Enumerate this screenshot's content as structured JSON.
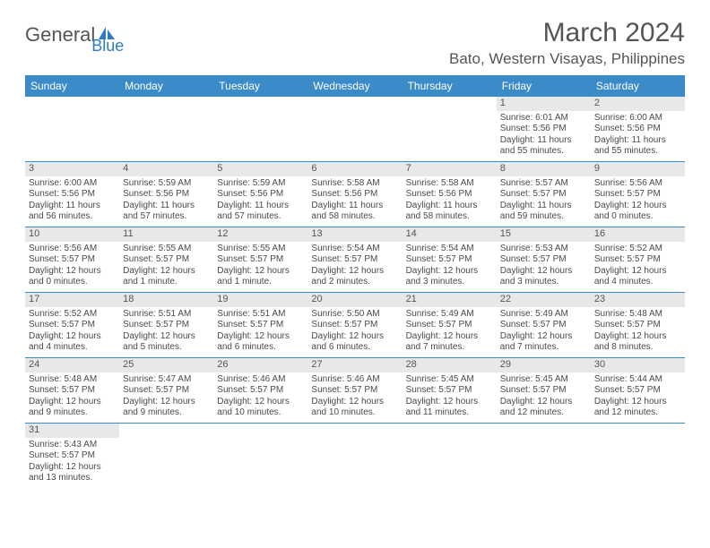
{
  "logo": {
    "part1": "General",
    "part2": "Blue"
  },
  "title": "March 2024",
  "location": "Bato, Western Visayas, Philippines",
  "colors": {
    "header_bg": "#3b8bc9",
    "header_text": "#ffffff",
    "daynum_bg": "#e8e8e8",
    "text": "#555555",
    "border": "#3b8bc9",
    "logo_blue": "#2d7cc1"
  },
  "day_headers": [
    "Sunday",
    "Monday",
    "Tuesday",
    "Wednesday",
    "Thursday",
    "Friday",
    "Saturday"
  ],
  "weeks": [
    [
      null,
      null,
      null,
      null,
      null,
      {
        "n": "1",
        "sr": "Sunrise: 6:01 AM",
        "ss": "Sunset: 5:56 PM",
        "d1": "Daylight: 11 hours",
        "d2": "and 55 minutes."
      },
      {
        "n": "2",
        "sr": "Sunrise: 6:00 AM",
        "ss": "Sunset: 5:56 PM",
        "d1": "Daylight: 11 hours",
        "d2": "and 55 minutes."
      }
    ],
    [
      {
        "n": "3",
        "sr": "Sunrise: 6:00 AM",
        "ss": "Sunset: 5:56 PM",
        "d1": "Daylight: 11 hours",
        "d2": "and 56 minutes."
      },
      {
        "n": "4",
        "sr": "Sunrise: 5:59 AM",
        "ss": "Sunset: 5:56 PM",
        "d1": "Daylight: 11 hours",
        "d2": "and 57 minutes."
      },
      {
        "n": "5",
        "sr": "Sunrise: 5:59 AM",
        "ss": "Sunset: 5:56 PM",
        "d1": "Daylight: 11 hours",
        "d2": "and 57 minutes."
      },
      {
        "n": "6",
        "sr": "Sunrise: 5:58 AM",
        "ss": "Sunset: 5:56 PM",
        "d1": "Daylight: 11 hours",
        "d2": "and 58 minutes."
      },
      {
        "n": "7",
        "sr": "Sunrise: 5:58 AM",
        "ss": "Sunset: 5:56 PM",
        "d1": "Daylight: 11 hours",
        "d2": "and 58 minutes."
      },
      {
        "n": "8",
        "sr": "Sunrise: 5:57 AM",
        "ss": "Sunset: 5:57 PM",
        "d1": "Daylight: 11 hours",
        "d2": "and 59 minutes."
      },
      {
        "n": "9",
        "sr": "Sunrise: 5:56 AM",
        "ss": "Sunset: 5:57 PM",
        "d1": "Daylight: 12 hours",
        "d2": "and 0 minutes."
      }
    ],
    [
      {
        "n": "10",
        "sr": "Sunrise: 5:56 AM",
        "ss": "Sunset: 5:57 PM",
        "d1": "Daylight: 12 hours",
        "d2": "and 0 minutes."
      },
      {
        "n": "11",
        "sr": "Sunrise: 5:55 AM",
        "ss": "Sunset: 5:57 PM",
        "d1": "Daylight: 12 hours",
        "d2": "and 1 minute."
      },
      {
        "n": "12",
        "sr": "Sunrise: 5:55 AM",
        "ss": "Sunset: 5:57 PM",
        "d1": "Daylight: 12 hours",
        "d2": "and 1 minute."
      },
      {
        "n": "13",
        "sr": "Sunrise: 5:54 AM",
        "ss": "Sunset: 5:57 PM",
        "d1": "Daylight: 12 hours",
        "d2": "and 2 minutes."
      },
      {
        "n": "14",
        "sr": "Sunrise: 5:54 AM",
        "ss": "Sunset: 5:57 PM",
        "d1": "Daylight: 12 hours",
        "d2": "and 3 minutes."
      },
      {
        "n": "15",
        "sr": "Sunrise: 5:53 AM",
        "ss": "Sunset: 5:57 PM",
        "d1": "Daylight: 12 hours",
        "d2": "and 3 minutes."
      },
      {
        "n": "16",
        "sr": "Sunrise: 5:52 AM",
        "ss": "Sunset: 5:57 PM",
        "d1": "Daylight: 12 hours",
        "d2": "and 4 minutes."
      }
    ],
    [
      {
        "n": "17",
        "sr": "Sunrise: 5:52 AM",
        "ss": "Sunset: 5:57 PM",
        "d1": "Daylight: 12 hours",
        "d2": "and 4 minutes."
      },
      {
        "n": "18",
        "sr": "Sunrise: 5:51 AM",
        "ss": "Sunset: 5:57 PM",
        "d1": "Daylight: 12 hours",
        "d2": "and 5 minutes."
      },
      {
        "n": "19",
        "sr": "Sunrise: 5:51 AM",
        "ss": "Sunset: 5:57 PM",
        "d1": "Daylight: 12 hours",
        "d2": "and 6 minutes."
      },
      {
        "n": "20",
        "sr": "Sunrise: 5:50 AM",
        "ss": "Sunset: 5:57 PM",
        "d1": "Daylight: 12 hours",
        "d2": "and 6 minutes."
      },
      {
        "n": "21",
        "sr": "Sunrise: 5:49 AM",
        "ss": "Sunset: 5:57 PM",
        "d1": "Daylight: 12 hours",
        "d2": "and 7 minutes."
      },
      {
        "n": "22",
        "sr": "Sunrise: 5:49 AM",
        "ss": "Sunset: 5:57 PM",
        "d1": "Daylight: 12 hours",
        "d2": "and 7 minutes."
      },
      {
        "n": "23",
        "sr": "Sunrise: 5:48 AM",
        "ss": "Sunset: 5:57 PM",
        "d1": "Daylight: 12 hours",
        "d2": "and 8 minutes."
      }
    ],
    [
      {
        "n": "24",
        "sr": "Sunrise: 5:48 AM",
        "ss": "Sunset: 5:57 PM",
        "d1": "Daylight: 12 hours",
        "d2": "and 9 minutes."
      },
      {
        "n": "25",
        "sr": "Sunrise: 5:47 AM",
        "ss": "Sunset: 5:57 PM",
        "d1": "Daylight: 12 hours",
        "d2": "and 9 minutes."
      },
      {
        "n": "26",
        "sr": "Sunrise: 5:46 AM",
        "ss": "Sunset: 5:57 PM",
        "d1": "Daylight: 12 hours",
        "d2": "and 10 minutes."
      },
      {
        "n": "27",
        "sr": "Sunrise: 5:46 AM",
        "ss": "Sunset: 5:57 PM",
        "d1": "Daylight: 12 hours",
        "d2": "and 10 minutes."
      },
      {
        "n": "28",
        "sr": "Sunrise: 5:45 AM",
        "ss": "Sunset: 5:57 PM",
        "d1": "Daylight: 12 hours",
        "d2": "and 11 minutes."
      },
      {
        "n": "29",
        "sr": "Sunrise: 5:45 AM",
        "ss": "Sunset: 5:57 PM",
        "d1": "Daylight: 12 hours",
        "d2": "and 12 minutes."
      },
      {
        "n": "30",
        "sr": "Sunrise: 5:44 AM",
        "ss": "Sunset: 5:57 PM",
        "d1": "Daylight: 12 hours",
        "d2": "and 12 minutes."
      }
    ],
    [
      {
        "n": "31",
        "sr": "Sunrise: 5:43 AM",
        "ss": "Sunset: 5:57 PM",
        "d1": "Daylight: 12 hours",
        "d2": "and 13 minutes."
      },
      null,
      null,
      null,
      null,
      null,
      null
    ]
  ]
}
